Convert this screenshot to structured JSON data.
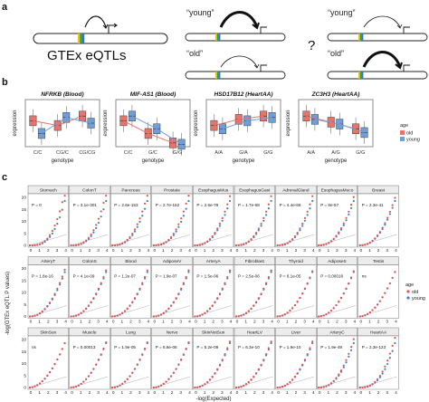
{
  "panel_a": {
    "letter": "a",
    "main_label": "GTEx eQTLs",
    "young_label": "“young”",
    "old_label": "“old”",
    "question": "?"
  },
  "panel_b": {
    "letter": "b",
    "ylabel": "expression",
    "xlabel": "genotype",
    "legend_title": "age",
    "legend_old": "old",
    "legend_young": "young",
    "colors": {
      "old": "#e8736c",
      "young": "#6f9fd8"
    },
    "plots": [
      {
        "title": "NFRKB (Blood)",
        "genotypes": [
          "C/C",
          "CG/C",
          "CG/CG"
        ]
      },
      {
        "title": "MIF-AS1 (Blood)",
        "genotypes": [
          "C/C",
          "G/C",
          "G/G"
        ]
      },
      {
        "title": "HSD17B12 (HeartAA)",
        "genotypes": [
          "A/A",
          "G/A",
          "G/G"
        ]
      },
      {
        "title": "ZC3H3 (HeartAA)",
        "genotypes": [
          "A/A",
          "A/G",
          "G/G"
        ]
      }
    ]
  },
  "panel_c": {
    "letter": "c",
    "ylabel": "-log(GTEx eQTL P values)",
    "xlabel": "-log(Expected)",
    "legend_title": "age",
    "legend_old": "old",
    "legend_young": "young",
    "tick_labels": [
      "0",
      "1",
      "2",
      "3",
      "4",
      "5"
    ],
    "y_tick_labels": [
      "0",
      "5",
      "10",
      "15",
      "20"
    ],
    "facets": [
      {
        "name": "Stomach",
        "p": "P = 0"
      },
      {
        "name": "ColonT",
        "p": "P = 3.1e-301"
      },
      {
        "name": "Pancreas",
        "p": "P = 2.6e-153"
      },
      {
        "name": "Prostate",
        "p": "P = 2.7e-152"
      },
      {
        "name": "EsophagusMus",
        "p": "P = 2.6e-78"
      },
      {
        "name": "EsophagusGast",
        "p": "P = 1.7e-68"
      },
      {
        "name": "AdrenalGland",
        "p": "P = 4.4e-66"
      },
      {
        "name": "EsophagusMuco",
        "p": "P = 8e-57"
      },
      {
        "name": "Breast",
        "p": "P = 2.3e-41"
      },
      {
        "name": "ArteryT",
        "p": "P = 1.8e-16"
      },
      {
        "name": "ColonS",
        "p": "P = 4.1e-09"
      },
      {
        "name": "Blood",
        "p": "P = 1.2e-07"
      },
      {
        "name": "AdiposeV",
        "p": "P = 1.9e-07"
      },
      {
        "name": "ArteryA",
        "p": "P = 1.5e-06"
      },
      {
        "name": "Fibroblast",
        "p": "P = 2.5e-06"
      },
      {
        "name": "Thyroid",
        "p": "P = 6.1e-05"
      },
      {
        "name": "AdiposeS",
        "p": "P = 0.00018"
      },
      {
        "name": "Testis",
        "p": "ns"
      },
      {
        "name": "SkinSun",
        "p": "ns"
      },
      {
        "name": "Muscle",
        "p": "P = 0.00013"
      },
      {
        "name": "Lung",
        "p": "P = 1.9e-05"
      },
      {
        "name": "Nerve",
        "p": "P = 6.8e-06"
      },
      {
        "name": "SkinNotSun",
        "p": "P = 5.2e-09"
      },
      {
        "name": "HeartLV",
        "p": "P = 6.3e-10"
      },
      {
        "name": "Liver",
        "p": "P = 1.9e-10"
      },
      {
        "name": "ArteryC",
        "p": "P = 1.9e-49"
      },
      {
        "name": "HeartAA",
        "p": "P = 2.3e-123"
      }
    ]
  }
}
